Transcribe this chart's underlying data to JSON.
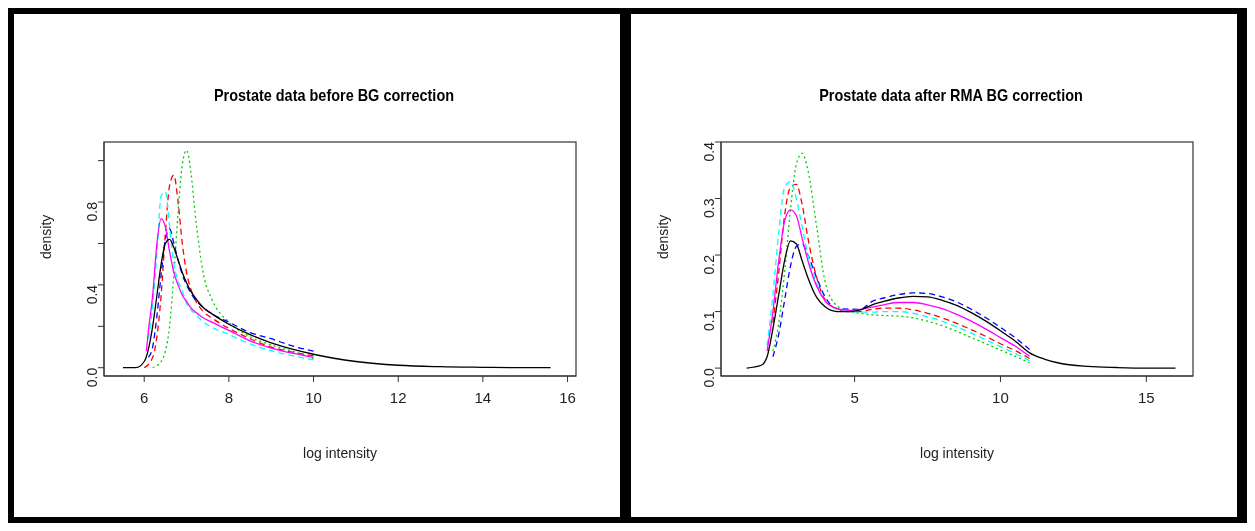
{
  "chart_data": [
    {
      "type": "line",
      "title": "Prostate data before BG correction",
      "xlabel": "log intensity",
      "ylabel": "density",
      "series": [
        {
          "color": "#ff0000",
          "line_style": "dashed",
          "x": [
            6.0,
            6.2,
            6.3,
            6.4,
            6.5,
            6.6,
            6.7,
            6.8,
            6.9,
            7.0,
            7.1,
            7.2,
            7.4,
            7.6,
            8,
            8.5,
            9,
            9.5,
            10
          ],
          "values": [
            0,
            0.05,
            0.15,
            0.35,
            0.65,
            0.88,
            0.93,
            0.8,
            0.6,
            0.46,
            0.38,
            0.33,
            0.27,
            0.24,
            0.19,
            0.14,
            0.1,
            0.075,
            0.058
          ]
        },
        {
          "color": "#00cd00",
          "line_style": "dotted",
          "x": [
            6.2,
            6.3,
            6.4,
            6.5,
            6.6,
            6.7,
            6.8,
            6.9,
            7.0,
            7.1,
            7.2,
            7.4,
            7.6,
            8,
            8.5,
            9,
            9.5,
            10
          ],
          "values": [
            0,
            0.01,
            0.03,
            0.08,
            0.2,
            0.45,
            0.75,
            0.98,
            1.05,
            0.95,
            0.75,
            0.45,
            0.33,
            0.22,
            0.15,
            0.11,
            0.08,
            0.045
          ]
        },
        {
          "color": "#0000ff",
          "line_style": "dashed",
          "x": [
            6.1,
            6.2,
            6.3,
            6.4,
            6.5,
            6.6,
            6.7,
            6.8,
            6.9,
            7.0,
            7.1,
            7.2,
            7.4,
            7.6,
            8,
            8.5,
            9,
            9.5,
            10
          ],
          "values": [
            0.05,
            0.1,
            0.25,
            0.45,
            0.62,
            0.67,
            0.6,
            0.52,
            0.45,
            0.4,
            0.36,
            0.33,
            0.29,
            0.26,
            0.22,
            0.17,
            0.14,
            0.105,
            0.08
          ]
        },
        {
          "color": "#00ffff",
          "line_style": "dashed",
          "x": [
            6.1,
            6.2,
            6.3,
            6.4,
            6.5,
            6.6,
            6.7,
            6.8,
            6.9,
            7.0,
            7.1,
            7.2,
            7.4,
            7.6,
            8,
            8.5,
            9,
            9.5,
            10
          ],
          "values": [
            0.14,
            0.3,
            0.55,
            0.83,
            0.85,
            0.68,
            0.5,
            0.42,
            0.37,
            0.31,
            0.28,
            0.26,
            0.22,
            0.195,
            0.16,
            0.115,
            0.082,
            0.058,
            0.038
          ]
        },
        {
          "color": "#ff00ff",
          "line_style": "solid",
          "x": [
            6.05,
            6.1,
            6.2,
            6.3,
            6.4,
            6.5,
            6.6,
            6.7,
            6.8,
            6.9,
            7.0,
            7.1,
            7.2,
            7.4,
            7.6,
            8,
            8.5,
            9,
            9.5,
            10
          ],
          "values": [
            0.08,
            0.18,
            0.35,
            0.6,
            0.72,
            0.68,
            0.56,
            0.46,
            0.4,
            0.35,
            0.32,
            0.29,
            0.27,
            0.24,
            0.22,
            0.18,
            0.13,
            0.095,
            0.07,
            0.05
          ]
        },
        {
          "color": "#000000",
          "line_style": "solid",
          "x": [
            5.5,
            5.8,
            6.0,
            6.2,
            6.3,
            6.4,
            6.5,
            6.6,
            6.7,
            6.8,
            6.9,
            7.0,
            7.1,
            7.2,
            7.4,
            7.6,
            8,
            8.5,
            9,
            9.5,
            10,
            11,
            12,
            13,
            14,
            15,
            15.6
          ],
          "values": [
            0,
            0,
            0.03,
            0.2,
            0.35,
            0.5,
            0.6,
            0.62,
            0.58,
            0.52,
            0.46,
            0.41,
            0.37,
            0.34,
            0.29,
            0.26,
            0.21,
            0.16,
            0.12,
            0.09,
            0.065,
            0.03,
            0.012,
            0.005,
            0.002,
            0,
            0
          ]
        }
      ],
      "xlim": [
        5.05,
        16.2
      ],
      "xticks": [
        6,
        8,
        10,
        12,
        14,
        16
      ],
      "ylim": [
        -0.04,
        1.09
      ],
      "yticks": [
        {
          "value": 0,
          "label": "0.0"
        },
        {
          "value": 0.2,
          "label": null
        },
        {
          "value": 0.4,
          "label": "0.4"
        },
        {
          "value": 0.6,
          "label": null
        },
        {
          "value": 0.8,
          "label": "0.8"
        },
        {
          "value": 1.0,
          "label": null
        }
      ],
      "grid": false,
      "legend": false,
      "marker": "none"
    },
    {
      "type": "line",
      "title": "Prostate data after RMA BG correction",
      "xlabel": "log intensity",
      "ylabel": "density",
      "series": [
        {
          "color": "#0000ff",
          "line_style": "dashed",
          "x": [
            2.2,
            2.4,
            2.6,
            2.8,
            3.0,
            3.2,
            3.4,
            3.7,
            4.0,
            4.4,
            5.2,
            5.6,
            6,
            6.5,
            7,
            7.5,
            8,
            8.5,
            9,
            9.5,
            10,
            10.5,
            11
          ],
          "values": [
            0.02,
            0.06,
            0.12,
            0.18,
            0.215,
            0.22,
            0.2,
            0.16,
            0.125,
            0.105,
            0.104,
            0.118,
            0.124,
            0.13,
            0.133,
            0.132,
            0.126,
            0.117,
            0.104,
            0.089,
            0.072,
            0.054,
            0.033
          ]
        },
        {
          "color": "#ff0000",
          "line_style": "dashed",
          "x": [
            2.2,
            2.4,
            2.6,
            2.8,
            3.0,
            3.2,
            3.4,
            3.7,
            4.0,
            4.4,
            4.8,
            5.2,
            5.6,
            6,
            6.5,
            7,
            7.5,
            8,
            8.5,
            9,
            9.5,
            10,
            10.5,
            11
          ],
          "values": [
            0.08,
            0.17,
            0.27,
            0.32,
            0.325,
            0.29,
            0.23,
            0.16,
            0.12,
            0.105,
            0.1,
            0.1,
            0.104,
            0.106,
            0.106,
            0.103,
            0.097,
            0.089,
            0.079,
            0.068,
            0.056,
            0.043,
            0.031,
            0.017
          ]
        },
        {
          "color": "#00cd00",
          "line_style": "dotted",
          "x": [
            2.2,
            2.4,
            2.6,
            2.8,
            3.0,
            3.2,
            3.4,
            3.7,
            4.0,
            4.4,
            4.8,
            5.2,
            5.6,
            6,
            6.5,
            7,
            7.5,
            8,
            8.5,
            9,
            9.5,
            10,
            10.5,
            11
          ],
          "values": [
            0.03,
            0.08,
            0.17,
            0.28,
            0.36,
            0.38,
            0.35,
            0.25,
            0.15,
            0.11,
            0.1,
            0.097,
            0.094,
            0.093,
            0.092,
            0.089,
            0.083,
            0.075,
            0.065,
            0.054,
            0.043,
            0.032,
            0.021,
            0.009
          ]
        },
        {
          "color": "#00ffff",
          "line_style": "dashed",
          "x": [
            2.0,
            2.2,
            2.4,
            2.6,
            2.8,
            3.0,
            3.2,
            3.4,
            3.7,
            4.0,
            4.4,
            4.8,
            5.2,
            5.6,
            6,
            6.5,
            7,
            7.5,
            8,
            8.5,
            9,
            9.5,
            10,
            10.5,
            11
          ],
          "values": [
            0.04,
            0.13,
            0.24,
            0.32,
            0.33,
            0.3,
            0.25,
            0.2,
            0.15,
            0.118,
            0.104,
            0.1,
            0.099,
            0.099,
            0.1,
            0.1,
            0.097,
            0.091,
            0.083,
            0.073,
            0.062,
            0.05,
            0.038,
            0.026,
            0.013
          ]
        },
        {
          "color": "#ff00ff",
          "line_style": "solid",
          "x": [
            2.0,
            2.2,
            2.4,
            2.6,
            2.8,
            3.0,
            3.2,
            3.4,
            3.7,
            4.0,
            4.4,
            4.8,
            5.2,
            5.6,
            6,
            6.5,
            7,
            7.5,
            8,
            8.5,
            9,
            9.5,
            10,
            10.5,
            11
          ],
          "values": [
            0.03,
            0.1,
            0.19,
            0.26,
            0.28,
            0.27,
            0.23,
            0.19,
            0.145,
            0.118,
            0.105,
            0.102,
            0.104,
            0.108,
            0.112,
            0.116,
            0.116,
            0.112,
            0.105,
            0.095,
            0.083,
            0.069,
            0.054,
            0.039,
            0.021
          ]
        },
        {
          "color": "#000000",
          "line_style": "solid",
          "x": [
            1.3,
            1.8,
            2.0,
            2.2,
            2.4,
            2.6,
            2.8,
            3.0,
            3.2,
            3.4,
            3.7,
            4.0,
            4.4,
            4.8,
            5.2,
            5.6,
            6,
            6.5,
            7,
            7.5,
            8,
            8.5,
            9,
            9.5,
            10,
            10.5,
            11,
            11.5,
            12,
            13,
            14,
            15,
            16
          ],
          "values": [
            0,
            0.005,
            0.02,
            0.07,
            0.13,
            0.19,
            0.225,
            0.22,
            0.19,
            0.16,
            0.125,
            0.108,
            0.1,
            0.1,
            0.103,
            0.112,
            0.118,
            0.124,
            0.127,
            0.126,
            0.12,
            0.111,
            0.098,
            0.083,
            0.066,
            0.048,
            0.027,
            0.016,
            0.009,
            0.003,
            0.001,
            0,
            0
          ]
        }
      ],
      "xlim": [
        0.42,
        16.6
      ],
      "xticks": [
        5,
        10,
        15
      ],
      "ylim": [
        -0.014,
        0.4
      ],
      "yticks": [
        {
          "value": 0,
          "label": "0.0"
        },
        {
          "value": 0.1,
          "label": "0.1"
        },
        {
          "value": 0.2,
          "label": "0.2"
        },
        {
          "value": 0.3,
          "label": "0.3"
        },
        {
          "value": 0.4,
          "label": "0.4"
        }
      ],
      "grid": false,
      "legend": false,
      "marker": "none"
    }
  ]
}
